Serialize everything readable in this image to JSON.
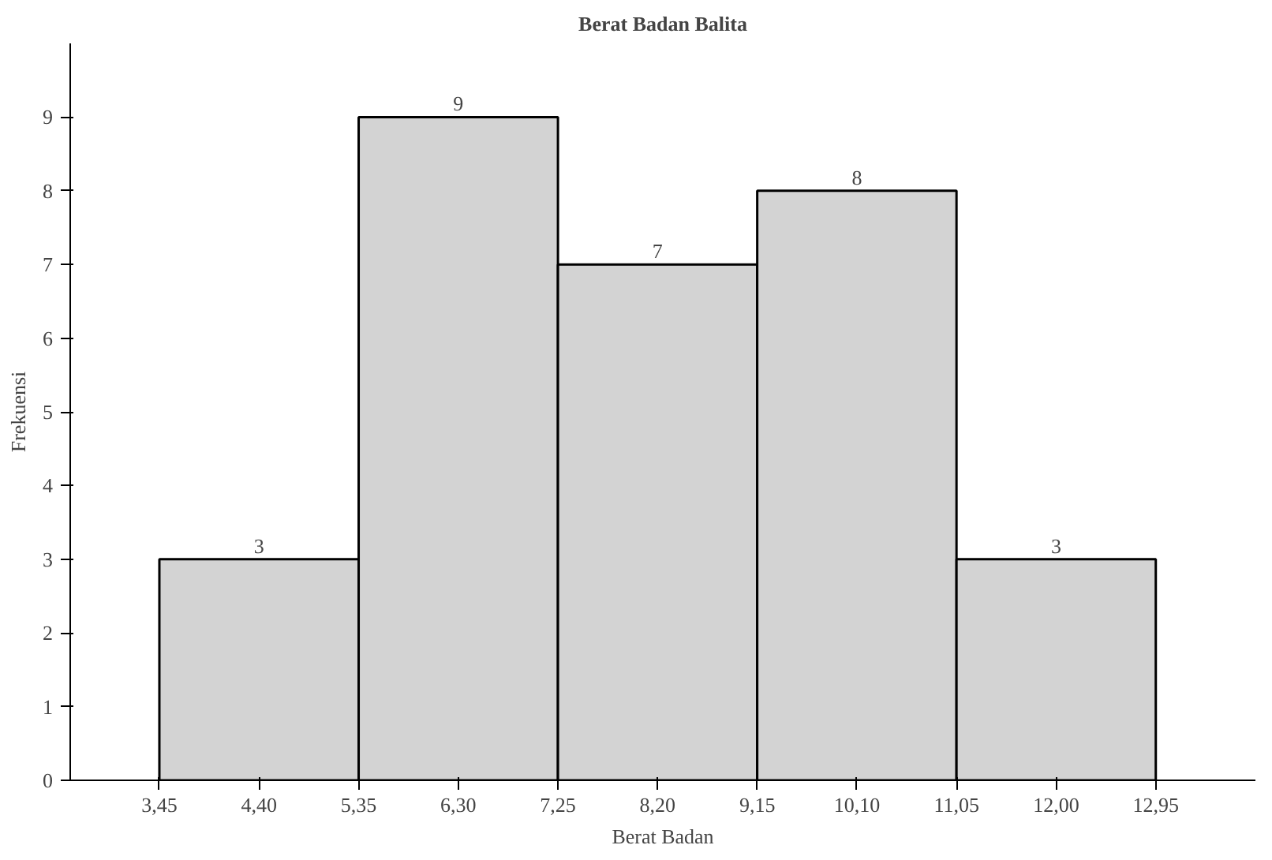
{
  "chart_data": {
    "type": "histogram",
    "title": "Berat Badan Balita",
    "xlabel": "Berat Badan",
    "ylabel": "Frekuensi",
    "bins": [
      3.45,
      5.35,
      7.25,
      9.15,
      11.05,
      12.95
    ],
    "values": [
      3,
      9,
      7,
      8,
      3
    ],
    "color": "#d3d3d3",
    "data_labels": true,
    "xlim": [
      2.6,
      13.9
    ],
    "xticks": [
      {
        "value": 3.45,
        "label": "3,45"
      },
      {
        "value": 4.4,
        "label": "4,40"
      },
      {
        "value": 5.35,
        "label": "5,35"
      },
      {
        "value": 6.3,
        "label": "6,30"
      },
      {
        "value": 7.25,
        "label": "7,25"
      },
      {
        "value": 8.2,
        "label": "8,20"
      },
      {
        "value": 9.15,
        "label": "9,15"
      },
      {
        "value": 10.1,
        "label": "10,10"
      },
      {
        "value": 11.05,
        "label": "11,05"
      },
      {
        "value": 12.0,
        "label": "12,00"
      },
      {
        "value": 12.95,
        "label": "12,95"
      }
    ],
    "ylim": [
      0,
      10
    ],
    "yticks": [
      0,
      1,
      2,
      3,
      4,
      5,
      6,
      7,
      8,
      9
    ],
    "grid": false
  }
}
